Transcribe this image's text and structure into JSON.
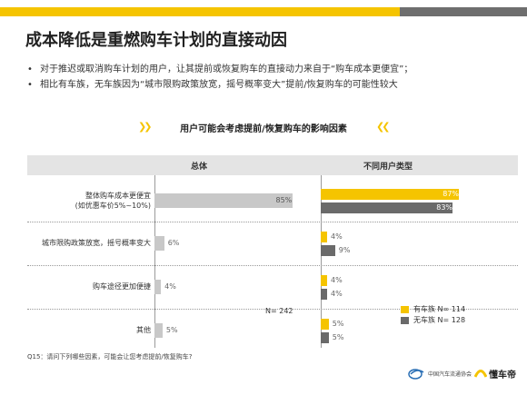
{
  "slide": {
    "title": "成本降低是重燃购车计划的直接动因",
    "bullets": [
      "对于推迟或取消购车计划的用户，让其提前或恢复购车的直接动力来自于“购车成本更便宜”；",
      "相比有车族，无车族因为“城市限购政策放宽，摇号概率变大”提前/恢复购车的可能性较大"
    ],
    "footnote": "Q15：请问下列哪些因素，可能会让您考虑提前/恢复购车?",
    "logo_assoc_text": "中国汽车流通协会",
    "logo_dcd_text": "懂车帝"
  },
  "colors": {
    "accent_yellow": "#F5C400",
    "dark_gray": "#6a6a6a",
    "light_gray": "#c8c8c8",
    "header_gray": "#e4e4e4"
  },
  "chart_data": {
    "type": "bar",
    "title": "用户可能会考虑提前/恢复购车的影响因素",
    "columns": [
      "总体",
      "不同用户类型"
    ],
    "categories": [
      [
        "整体购车成本更便宜",
        "(如优惠车价5%~10%)"
      ],
      [
        "城市限购政策放宽，摇号概率变大"
      ],
      [
        "购车途径更加便捷"
      ],
      [
        "其他"
      ]
    ],
    "overall": {
      "values": [
        85,
        6,
        4,
        5
      ],
      "labels": [
        "85%",
        "6%",
        "4%",
        "5%"
      ],
      "n": "N= 242"
    },
    "series": [
      {
        "name": "有车族 N= 114",
        "values": [
          87,
          4,
          4,
          5
        ],
        "labels": [
          "87%",
          "4%",
          "4%",
          "5%"
        ],
        "color": "#F5C400"
      },
      {
        "name": "无车族 N= 128",
        "values": [
          83,
          9,
          4,
          5
        ],
        "labels": [
          "83%",
          "9%",
          "4%",
          "5%"
        ],
        "color": "#6a6a6a"
      }
    ],
    "xlim": [
      0,
      100
    ],
    "grid": false,
    "legend_position": "bottom-right"
  }
}
